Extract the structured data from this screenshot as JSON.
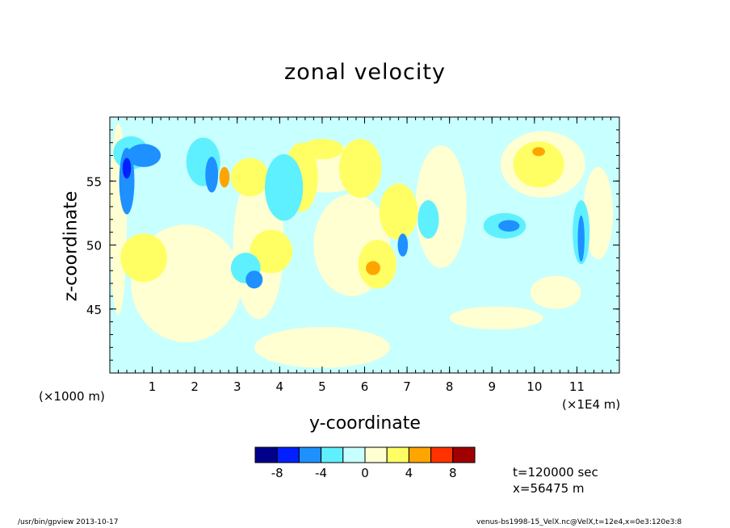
{
  "footer": {
    "left": "/usr/bin/gpview   2013-10-17",
    "right": "venus-bs1998-15_VelX.nc@VelX,t=12e4,x=0e3:120e3:8"
  },
  "info": {
    "time": "t=120000 sec",
    "xpos": "x=56475 m"
  },
  "colors": {
    "levels": [
      "#00008b",
      "#0020ff",
      "#1e90ff",
      "#5ff0ff",
      "#c8ffff",
      "#ffffd2",
      "#ffff64",
      "#ffa500",
      "#ff3200",
      "#a00000"
    ]
  },
  "chart_data": {
    "type": "heatmap",
    "title": "zonal velocity",
    "xlabel": "y-coordinate",
    "ylabel": "z-coordinate",
    "x_unit_label": "(×1E4 m)",
    "y_unit_label": "(×1000 m)",
    "xlim": [
      0,
      12
    ],
    "ylim": [
      40,
      60
    ],
    "x_ticks": [
      1,
      2,
      3,
      4,
      5,
      6,
      7,
      8,
      9,
      10,
      11
    ],
    "y_ticks": [
      45,
      50,
      55
    ],
    "colorbar": {
      "bounds": [
        -10,
        -8,
        -6,
        -4,
        -2,
        0,
        2,
        4,
        6,
        8,
        10
      ],
      "tick_labels": [
        "-8",
        "-4",
        "0",
        "4",
        "8"
      ],
      "tick_values": [
        -8,
        -4,
        0,
        4,
        8
      ]
    },
    "base_field_value": -1,
    "regions": [
      {
        "id": "blob-01",
        "x": 0.2,
        "y": 52,
        "rx": 0.2,
        "ry": 7.5,
        "value": 1
      },
      {
        "id": "blob-02",
        "x": 1.8,
        "y": 47,
        "rx": 1.3,
        "ry": 4.6,
        "value": 1
      },
      {
        "id": "blob-03",
        "x": 3.5,
        "y": 50,
        "rx": 0.6,
        "ry": 5.8,
        "value": 1
      },
      {
        "id": "blob-04",
        "x": 5.7,
        "y": 50,
        "rx": 0.9,
        "ry": 4,
        "value": 1
      },
      {
        "id": "blob-05",
        "x": 5.1,
        "y": 56,
        "rx": 1,
        "ry": 1.9,
        "value": 1
      },
      {
        "id": "blob-06",
        "x": 7.8,
        "y": 53,
        "rx": 0.6,
        "ry": 4.8,
        "value": 1
      },
      {
        "id": "blob-07",
        "x": 10.2,
        "y": 56.3,
        "rx": 1,
        "ry": 2.6,
        "value": 1
      },
      {
        "id": "blob-08",
        "x": 9.1,
        "y": 44.3,
        "rx": 1.1,
        "ry": 0.9,
        "value": 1
      },
      {
        "id": "blob-09",
        "x": 5,
        "y": 42,
        "rx": 1.6,
        "ry": 1.6,
        "value": 1
      },
      {
        "id": "blob-10",
        "x": 11.5,
        "y": 52.5,
        "rx": 0.35,
        "ry": 3.6,
        "value": 1
      },
      {
        "id": "blob-11",
        "x": 10.5,
        "y": 46.3,
        "rx": 0.6,
        "ry": 1.3,
        "value": 1
      },
      {
        "id": "blob-12",
        "x": 5.9,
        "y": 56,
        "rx": 0.5,
        "ry": 2.3,
        "value": 3
      },
      {
        "id": "blob-13",
        "x": 6.8,
        "y": 52.6,
        "rx": 0.45,
        "ry": 2.2,
        "value": 3
      },
      {
        "id": "blob-14",
        "x": 3.3,
        "y": 55.3,
        "rx": 0.45,
        "ry": 1.5,
        "value": 3
      },
      {
        "id": "blob-15",
        "x": 4.5,
        "y": 55.3,
        "rx": 0.4,
        "ry": 2.7,
        "value": 3
      },
      {
        "id": "blob-16",
        "x": 5,
        "y": 57.5,
        "rx": 0.5,
        "ry": 0.8,
        "value": 3
      },
      {
        "id": "blob-17",
        "x": 0.8,
        "y": 49,
        "rx": 0.55,
        "ry": 1.9,
        "value": 3
      },
      {
        "id": "blob-18",
        "x": 3.8,
        "y": 49.5,
        "rx": 0.5,
        "ry": 1.7,
        "value": 3
      },
      {
        "id": "blob-19",
        "x": 6.3,
        "y": 48.5,
        "rx": 0.45,
        "ry": 1.9,
        "value": 3
      },
      {
        "id": "blob-20",
        "x": 10.1,
        "y": 56.3,
        "rx": 0.6,
        "ry": 1.8,
        "value": 3
      },
      {
        "id": "blob-21",
        "x": 2.7,
        "y": 55.3,
        "rx": 0.12,
        "ry": 0.8,
        "value": 5
      },
      {
        "id": "blob-22",
        "x": 6.2,
        "y": 48.2,
        "rx": 0.17,
        "ry": 0.55,
        "value": 5
      },
      {
        "id": "blob-23",
        "x": 10.1,
        "y": 57.3,
        "rx": 0.15,
        "ry": 0.35,
        "value": 5
      },
      {
        "id": "blob-24",
        "x": 0.5,
        "y": 57.2,
        "rx": 0.42,
        "ry": 1.3,
        "value": -3
      },
      {
        "id": "blob-25",
        "x": 2.2,
        "y": 56.5,
        "rx": 0.4,
        "ry": 1.9,
        "value": -3
      },
      {
        "id": "blob-26",
        "x": 4.1,
        "y": 54.5,
        "rx": 0.45,
        "ry": 2.6,
        "value": -3
      },
      {
        "id": "blob-27",
        "x": 3.2,
        "y": 48.2,
        "rx": 0.35,
        "ry": 1.2,
        "value": -3
      },
      {
        "id": "blob-28",
        "x": 7.5,
        "y": 52,
        "rx": 0.25,
        "ry": 1.5,
        "value": -3
      },
      {
        "id": "blob-29",
        "x": 9.3,
        "y": 51.5,
        "rx": 0.5,
        "ry": 1,
        "value": -3
      },
      {
        "id": "blob-30",
        "x": 11.1,
        "y": 51,
        "rx": 0.2,
        "ry": 2.5,
        "value": -3
      },
      {
        "id": "blob-31",
        "x": 0.4,
        "y": 55,
        "rx": 0.18,
        "ry": 2.6,
        "value": -5
      },
      {
        "id": "blob-32",
        "x": 0.8,
        "y": 57,
        "rx": 0.4,
        "ry": 0.9,
        "value": -5
      },
      {
        "id": "blob-33",
        "x": 2.4,
        "y": 55.5,
        "rx": 0.15,
        "ry": 1.4,
        "value": -5
      },
      {
        "id": "blob-34",
        "x": 3.4,
        "y": 47.3,
        "rx": 0.2,
        "ry": 0.7,
        "value": -5
      },
      {
        "id": "blob-35",
        "x": 6.9,
        "y": 50,
        "rx": 0.12,
        "ry": 0.9,
        "value": -5
      },
      {
        "id": "blob-36",
        "x": 9.4,
        "y": 51.5,
        "rx": 0.25,
        "ry": 0.45,
        "value": -5
      },
      {
        "id": "blob-37",
        "x": 11.1,
        "y": 50.5,
        "rx": 0.08,
        "ry": 1.8,
        "value": -5
      },
      {
        "id": "blob-38",
        "x": 0.4,
        "y": 56,
        "rx": 0.1,
        "ry": 0.8,
        "value": -7
      }
    ]
  }
}
